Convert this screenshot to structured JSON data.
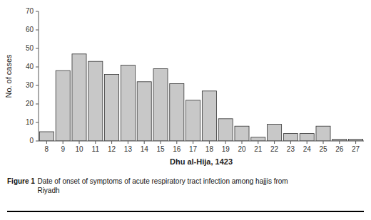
{
  "chart_data": {
    "type": "bar",
    "categories": [
      8,
      9,
      10,
      11,
      12,
      13,
      14,
      15,
      16,
      17,
      18,
      19,
      20,
      21,
      22,
      23,
      24,
      25,
      26,
      27
    ],
    "values": [
      5,
      38,
      47,
      43,
      36,
      41,
      32,
      39,
      31,
      22,
      27,
      12,
      8,
      2,
      9,
      4,
      4,
      8,
      1,
      1
    ],
    "color": "#c8c8c8",
    "ylabel": "No. of cases",
    "xlabel": "Dhu al-Hija, 1423",
    "ylim": [
      0,
      70
    ],
    "yticks": [
      0,
      10,
      20,
      30,
      40,
      50,
      60,
      70
    ],
    "grid": false,
    "caption_label": "Figure 1",
    "caption": "Date of onset of symptoms of acute respiratory tract infection among hajjis from\nRiyadh"
  }
}
